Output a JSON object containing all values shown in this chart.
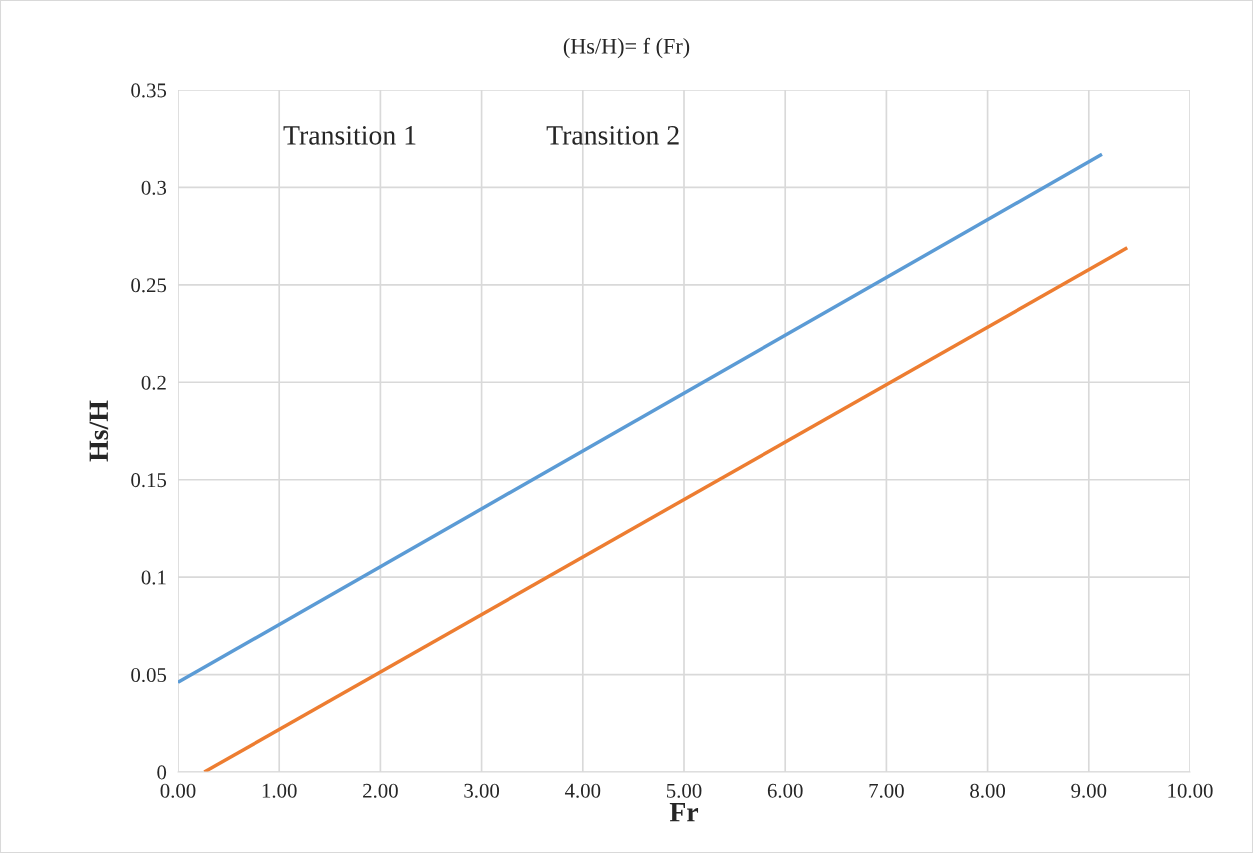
{
  "chart_data": {
    "type": "line",
    "title": "(Hs/H)= f (Fr)",
    "xlabel": "Fr",
    "ylabel": "Hs/H",
    "series": [
      {
        "color": "#5b9bd5",
        "x": [
          0,
          9.13
        ],
        "values": [
          0.046,
          0.317
        ]
      },
      {
        "color": "#ed7d31",
        "x": [
          0.26,
          9.38
        ],
        "values": [
          0,
          0.269
        ]
      }
    ],
    "xlim": [
      0,
      10
    ],
    "ylim": [
      0,
      0.35
    ],
    "xticks": [
      {
        "value": 0,
        "label": "0.00"
      },
      {
        "value": 1,
        "label": "1.00"
      },
      {
        "value": 2,
        "label": "2.00"
      },
      {
        "value": 3,
        "label": "3.00"
      },
      {
        "value": 4,
        "label": "4.00"
      },
      {
        "value": 5,
        "label": "5.00"
      },
      {
        "value": 6,
        "label": "6.00"
      },
      {
        "value": 7,
        "label": "7.00"
      },
      {
        "value": 8,
        "label": "8.00"
      },
      {
        "value": 9,
        "label": "9.00"
      },
      {
        "value": 10,
        "label": "10.00"
      }
    ],
    "yticks": [
      0,
      0.05,
      0.1,
      0.15,
      0.2,
      0.25,
      0.3,
      0.35
    ],
    "annotations": [
      "Transition 1",
      "Transition 2"
    ],
    "grid": true,
    "legend": false,
    "marker": "none",
    "line_style": "solid"
  }
}
